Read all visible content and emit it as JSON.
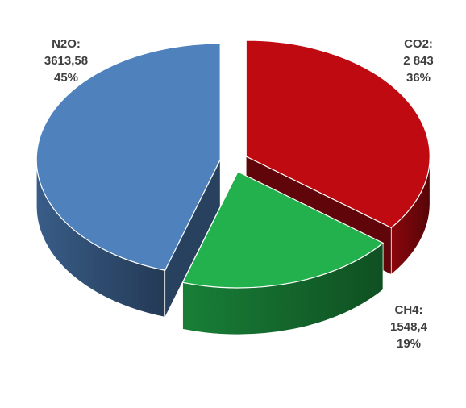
{
  "chart_data": {
    "type": "pie",
    "title": "",
    "style": "3d-exploded",
    "slices": [
      {
        "name": "CO2",
        "value": 2843,
        "percent": 36,
        "color": "#c00a12",
        "label_name": "CO2:",
        "label_value": "2 843",
        "label_pct": "36%"
      },
      {
        "name": "CH4",
        "value": 1548.4,
        "percent": 19,
        "color": "#22b14c",
        "label_name": "CH4:",
        "label_value": "1548,4",
        "label_pct": "19%"
      },
      {
        "name": "N2O",
        "value": 3613.58,
        "percent": 45,
        "color": "#4f81bd",
        "label_name": "N2O:",
        "label_value": "3613,58",
        "label_pct": "45%"
      }
    ]
  }
}
